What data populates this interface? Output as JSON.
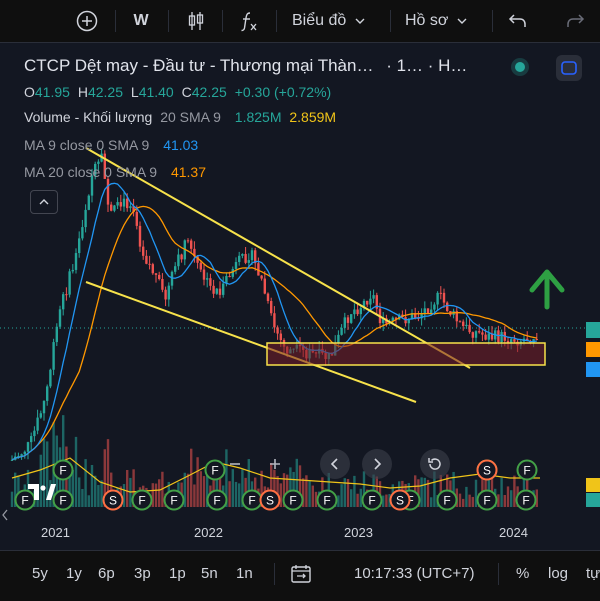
{
  "toolbar": {
    "interval": "W",
    "chart_menu": "Biểu đồ",
    "profile_menu": "Hồ sơ"
  },
  "legend": {
    "title": "CTCP Dệt may - Đầu tư - Thương mại Thàn…",
    "title_suffix": "· 1… · H…",
    "o_label": "O",
    "o_val": "41.95",
    "h_label": "H",
    "h_val": "42.25",
    "l_label": "L",
    "l_val": "41.40",
    "c_label": "C",
    "c_val": "42.25",
    "change": "+0.30 (+0.72%)",
    "volume_label": "Volume - Khối lượng",
    "volume_params": "20 SMA 9",
    "volume_val": "1.825M",
    "volume_sma": "2.859M",
    "ma9_label": "MA 9 close 0 SMA 9",
    "ma9_val": "41.03",
    "ma20_label": "MA 20 close 0 SMA 9",
    "ma20_val": "41.37"
  },
  "colors": {
    "up": "#26a69a",
    "down": "#ef5350",
    "ma9": "#2196f3",
    "ma20": "#ff9800",
    "trendline": "#f7e24b",
    "arrow": "#2ea043",
    "event": "#43a047",
    "split": "#ff7043"
  },
  "xaxis": [
    "2021",
    "2022",
    "2023",
    "2024"
  ],
  "bottom": {
    "ranges": [
      "5y",
      "1y",
      "6p",
      "3p",
      "1p",
      "5n",
      "1n"
    ],
    "time": "10:17:33 (UTC+7)",
    "percent": "%",
    "log": "log",
    "auto": "tự"
  },
  "events": {
    "f": "F",
    "s": "S"
  }
}
